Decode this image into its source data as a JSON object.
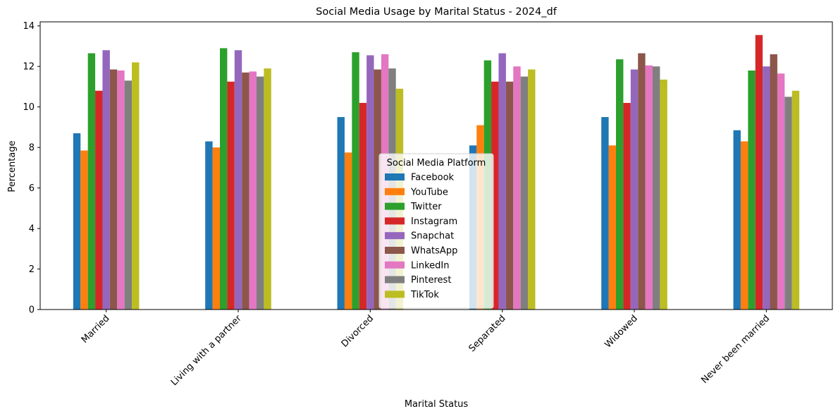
{
  "chart_data": {
    "type": "bar",
    "title": "Social Media Usage by Marital Status - 2024_df",
    "xlabel": "Marital Status",
    "ylabel": "Percentage",
    "ylim": [
      0,
      14.2
    ],
    "yticks": [
      0,
      2,
      4,
      6,
      8,
      10,
      12,
      14
    ],
    "grid": false,
    "legend": {
      "title": "Social Media Platform",
      "placement": "center"
    },
    "categories": [
      "Married",
      "Living with a partner",
      "Divorced",
      "Separated",
      "Widowed",
      "Never been married"
    ],
    "series": [
      {
        "name": "Facebook",
        "color": "#1f77b4",
        "values": [
          8.7,
          8.3,
          9.5,
          8.1,
          9.5,
          8.85
        ]
      },
      {
        "name": "YouTube",
        "color": "#ff7f0e",
        "values": [
          7.85,
          8.0,
          7.75,
          9.1,
          8.1,
          8.3
        ]
      },
      {
        "name": "Twitter",
        "color": "#2ca02c",
        "values": [
          12.65,
          12.9,
          12.7,
          12.3,
          12.35,
          11.8
        ]
      },
      {
        "name": "Instagram",
        "color": "#d62728",
        "values": [
          10.8,
          11.25,
          10.2,
          11.25,
          10.2,
          13.55
        ]
      },
      {
        "name": "Snapchat",
        "color": "#9467bd",
        "values": [
          12.8,
          12.8,
          12.55,
          12.65,
          11.85,
          12.0
        ]
      },
      {
        "name": "WhatsApp",
        "color": "#8c564b",
        "values": [
          11.85,
          11.7,
          11.85,
          11.25,
          12.65,
          12.6
        ]
      },
      {
        "name": "LinkedIn",
        "color": "#e377c2",
        "values": [
          11.8,
          11.75,
          12.6,
          12.0,
          12.05,
          11.65
        ]
      },
      {
        "name": "Pinterest",
        "color": "#7f7f7f",
        "values": [
          11.3,
          11.5,
          11.9,
          11.5,
          12.0,
          10.5
        ]
      },
      {
        "name": "TikTok",
        "color": "#bcbd22",
        "values": [
          12.2,
          11.9,
          10.9,
          11.85,
          11.35,
          10.8
        ]
      }
    ]
  }
}
